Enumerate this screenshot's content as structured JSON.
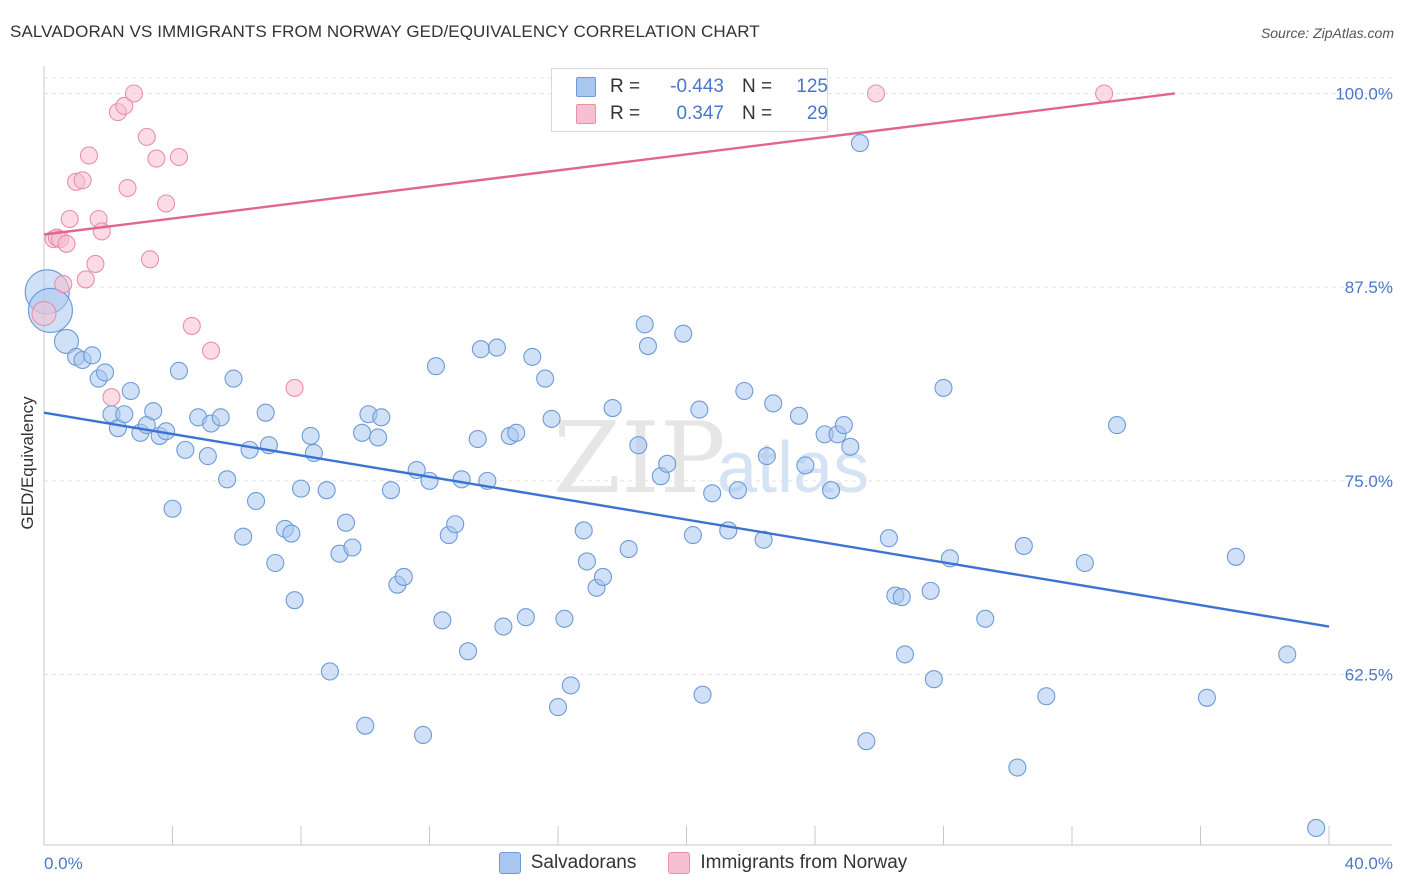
{
  "header": {
    "title": "SALVADORAN VS IMMIGRANTS FROM NORWAY GED/EQUIVALENCY CORRELATION CHART",
    "source": "Source: ZipAtlas.com"
  },
  "watermark": {
    "text_zip": "ZIP",
    "text_atlas": "atlas"
  },
  "legend": {
    "rows": [
      {
        "r_label": "R =",
        "r_value": "-0.443",
        "n_label": "N =",
        "n_value": "125"
      },
      {
        "r_label": "R =",
        "r_value": "0.347",
        "n_label": "N =",
        "n_value": "29"
      }
    ]
  },
  "bottom_legend": {
    "items": [
      {
        "label": "Salvadorans"
      },
      {
        "label": "Immigrants from Norway"
      }
    ]
  },
  "colors": {
    "blue_fill": "#a9c6ee",
    "blue_stroke": "#6d9bd8",
    "blue_line": "#3a74d0",
    "pink_fill": "#f7bfd0",
    "pink_stroke": "#ea8fab",
    "pink_line": "#e06690",
    "tick_text": "#4a77c9",
    "grid": "#e3e3e3"
  },
  "chart_data": {
    "type": "scatter",
    "title": "SALVADORAN VS IMMIGRANTS FROM NORWAY GED/EQUIVALENCY CORRELATION CHART",
    "xlabel": "",
    "ylabel": "GED/Equivalency",
    "xlim": [
      0,
      40
    ],
    "ylim": [
      51.5,
      101
    ],
    "x_tick_labels": [
      "0.0%",
      "40.0%"
    ],
    "y_ticks": [
      62.5,
      75.0,
      87.5,
      100.0
    ],
    "y_tick_labels": [
      "62.5%",
      "75.0%",
      "87.5%",
      "100.0%"
    ],
    "grid": "horizontal dashed",
    "legend_position": "top-center",
    "series": [
      {
        "name": "Salvadorans",
        "color": "#a9c6ee",
        "trend": {
          "x": [
            0,
            40
          ],
          "y": [
            79.4,
            65.6
          ]
        },
        "points": [
          {
            "x": 0.1,
            "y": 87.2,
            "s": "xl"
          },
          {
            "x": 0.2,
            "y": 86.0,
            "s": "xl"
          },
          {
            "x": 0.7,
            "y": 84.0,
            "s": "l"
          },
          {
            "x": 1.0,
            "y": 83.0
          },
          {
            "x": 1.2,
            "y": 82.8
          },
          {
            "x": 1.5,
            "y": 83.1
          },
          {
            "x": 1.7,
            "y": 81.6
          },
          {
            "x": 1.9,
            "y": 82.0
          },
          {
            "x": 2.1,
            "y": 79.3
          },
          {
            "x": 2.3,
            "y": 78.4
          },
          {
            "x": 2.5,
            "y": 79.3
          },
          {
            "x": 2.7,
            "y": 80.8
          },
          {
            "x": 3.0,
            "y": 78.1
          },
          {
            "x": 3.2,
            "y": 78.6
          },
          {
            "x": 3.4,
            "y": 79.5
          },
          {
            "x": 3.6,
            "y": 77.9
          },
          {
            "x": 3.8,
            "y": 78.2
          },
          {
            "x": 4.0,
            "y": 73.2
          },
          {
            "x": 4.2,
            "y": 82.1
          },
          {
            "x": 4.4,
            "y": 77.0
          },
          {
            "x": 4.8,
            "y": 79.1
          },
          {
            "x": 5.1,
            "y": 76.6
          },
          {
            "x": 5.2,
            "y": 78.7
          },
          {
            "x": 5.5,
            "y": 79.1
          },
          {
            "x": 5.7,
            "y": 75.1
          },
          {
            "x": 5.9,
            "y": 81.6
          },
          {
            "x": 6.2,
            "y": 71.4
          },
          {
            "x": 6.4,
            "y": 77.0
          },
          {
            "x": 6.6,
            "y": 73.7
          },
          {
            "x": 6.9,
            "y": 79.4
          },
          {
            "x": 7.0,
            "y": 77.3
          },
          {
            "x": 7.2,
            "y": 69.7
          },
          {
            "x": 7.5,
            "y": 71.9
          },
          {
            "x": 7.7,
            "y": 71.6
          },
          {
            "x": 7.8,
            "y": 67.3
          },
          {
            "x": 8.0,
            "y": 74.5
          },
          {
            "x": 8.3,
            "y": 77.9
          },
          {
            "x": 8.4,
            "y": 76.8
          },
          {
            "x": 8.8,
            "y": 74.4
          },
          {
            "x": 8.9,
            "y": 62.7
          },
          {
            "x": 9.2,
            "y": 70.3
          },
          {
            "x": 9.4,
            "y": 72.3
          },
          {
            "x": 9.6,
            "y": 70.7
          },
          {
            "x": 9.9,
            "y": 78.1
          },
          {
            "x": 10.0,
            "y": 59.2
          },
          {
            "x": 10.1,
            "y": 79.3
          },
          {
            "x": 10.4,
            "y": 77.8
          },
          {
            "x": 10.5,
            "y": 79.1
          },
          {
            "x": 10.8,
            "y": 74.4
          },
          {
            "x": 11.0,
            "y": 68.3
          },
          {
            "x": 11.2,
            "y": 68.8
          },
          {
            "x": 11.6,
            "y": 75.7
          },
          {
            "x": 11.8,
            "y": 58.6
          },
          {
            "x": 12.0,
            "y": 75.0
          },
          {
            "x": 12.2,
            "y": 82.4
          },
          {
            "x": 12.4,
            "y": 66.0
          },
          {
            "x": 12.6,
            "y": 71.5
          },
          {
            "x": 12.8,
            "y": 72.2
          },
          {
            "x": 13.0,
            "y": 75.1
          },
          {
            "x": 13.2,
            "y": 64.0
          },
          {
            "x": 13.5,
            "y": 77.7
          },
          {
            "x": 13.6,
            "y": 83.5
          },
          {
            "x": 13.8,
            "y": 75.0
          },
          {
            "x": 14.1,
            "y": 83.6
          },
          {
            "x": 14.3,
            "y": 65.6
          },
          {
            "x": 14.5,
            "y": 77.9
          },
          {
            "x": 14.7,
            "y": 78.1
          },
          {
            "x": 15.0,
            "y": 66.2
          },
          {
            "x": 15.2,
            "y": 83.0
          },
          {
            "x": 15.6,
            "y": 81.6
          },
          {
            "x": 15.8,
            "y": 79.0
          },
          {
            "x": 16.0,
            "y": 60.4
          },
          {
            "x": 16.2,
            "y": 66.1
          },
          {
            "x": 16.4,
            "y": 61.8
          },
          {
            "x": 16.8,
            "y": 71.8
          },
          {
            "x": 16.9,
            "y": 69.8
          },
          {
            "x": 17.2,
            "y": 68.1
          },
          {
            "x": 17.4,
            "y": 68.8
          },
          {
            "x": 17.7,
            "y": 79.7
          },
          {
            "x": 18.2,
            "y": 70.6
          },
          {
            "x": 18.5,
            "y": 77.3
          },
          {
            "x": 18.7,
            "y": 85.1
          },
          {
            "x": 18.8,
            "y": 83.7
          },
          {
            "x": 19.2,
            "y": 75.3
          },
          {
            "x": 19.4,
            "y": 76.1
          },
          {
            "x": 19.9,
            "y": 84.5
          },
          {
            "x": 20.2,
            "y": 71.5
          },
          {
            "x": 20.4,
            "y": 79.6
          },
          {
            "x": 20.5,
            "y": 61.2
          },
          {
            "x": 20.8,
            "y": 74.2
          },
          {
            "x": 21.3,
            "y": 71.8
          },
          {
            "x": 21.6,
            "y": 74.4
          },
          {
            "x": 21.8,
            "y": 80.8
          },
          {
            "x": 22.4,
            "y": 71.2
          },
          {
            "x": 22.5,
            "y": 76.6
          },
          {
            "x": 22.7,
            "y": 80.0
          },
          {
            "x": 23.5,
            "y": 79.2
          },
          {
            "x": 23.7,
            "y": 76.0
          },
          {
            "x": 24.3,
            "y": 78.0
          },
          {
            "x": 24.5,
            "y": 74.4
          },
          {
            "x": 24.7,
            "y": 78.0
          },
          {
            "x": 24.9,
            "y": 78.6
          },
          {
            "x": 25.1,
            "y": 77.2
          },
          {
            "x": 25.4,
            "y": 96.8
          },
          {
            "x": 25.6,
            "y": 58.2
          },
          {
            "x": 26.3,
            "y": 71.3
          },
          {
            "x": 26.5,
            "y": 67.6
          },
          {
            "x": 26.7,
            "y": 67.5
          },
          {
            "x": 26.8,
            "y": 63.8
          },
          {
            "x": 27.6,
            "y": 67.9
          },
          {
            "x": 27.7,
            "y": 62.2
          },
          {
            "x": 28.0,
            "y": 81.0
          },
          {
            "x": 28.2,
            "y": 70.0
          },
          {
            "x": 29.3,
            "y": 66.1
          },
          {
            "x": 30.3,
            "y": 56.5
          },
          {
            "x": 30.5,
            "y": 70.8
          },
          {
            "x": 31.2,
            "y": 61.1
          },
          {
            "x": 32.4,
            "y": 69.7
          },
          {
            "x": 33.4,
            "y": 78.6
          },
          {
            "x": 36.2,
            "y": 61.0
          },
          {
            "x": 37.1,
            "y": 70.1
          },
          {
            "x": 38.7,
            "y": 63.8
          },
          {
            "x": 39.6,
            "y": 52.6
          }
        ]
      },
      {
        "name": "Immigrants from Norway",
        "color": "#f7bfd0",
        "trend": {
          "x": [
            0,
            35.2
          ],
          "y": [
            90.9,
            100.0
          ]
        },
        "points": [
          {
            "x": 0.0,
            "y": 85.8,
            "s": "l"
          },
          {
            "x": 0.3,
            "y": 90.6
          },
          {
            "x": 0.4,
            "y": 90.7
          },
          {
            "x": 0.5,
            "y": 90.6
          },
          {
            "x": 0.6,
            "y": 87.7
          },
          {
            "x": 0.7,
            "y": 90.3
          },
          {
            "x": 0.8,
            "y": 91.9
          },
          {
            "x": 1.0,
            "y": 94.3
          },
          {
            "x": 1.2,
            "y": 94.4
          },
          {
            "x": 1.3,
            "y": 88.0
          },
          {
            "x": 1.4,
            "y": 96.0
          },
          {
            "x": 1.6,
            "y": 89.0
          },
          {
            "x": 1.7,
            "y": 91.9
          },
          {
            "x": 1.8,
            "y": 91.1
          },
          {
            "x": 2.1,
            "y": 80.4
          },
          {
            "x": 2.3,
            "y": 98.8
          },
          {
            "x": 2.5,
            "y": 99.2
          },
          {
            "x": 2.6,
            "y": 93.9
          },
          {
            "x": 2.8,
            "y": 100.0
          },
          {
            "x": 3.2,
            "y": 97.2
          },
          {
            "x": 3.3,
            "y": 89.3
          },
          {
            "x": 3.5,
            "y": 95.8
          },
          {
            "x": 3.8,
            "y": 92.9
          },
          {
            "x": 4.2,
            "y": 95.9
          },
          {
            "x": 4.6,
            "y": 85.0
          },
          {
            "x": 5.2,
            "y": 83.4
          },
          {
            "x": 7.8,
            "y": 81.0
          },
          {
            "x": 25.9,
            "y": 100.0
          },
          {
            "x": 33.0,
            "y": 100.0
          }
        ]
      }
    ]
  }
}
